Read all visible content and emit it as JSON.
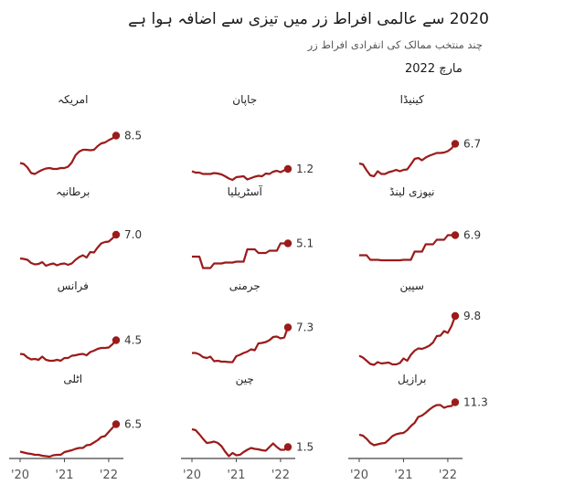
{
  "header": {
    "title": "2020 سے عالمی افراط زر میں تیزی سے اضافہ ہوا ہے",
    "subtitle": "چند منتخب ممالک کی انفرادی افراط زر",
    "period": "مارچ 2022"
  },
  "colors": {
    "line": "#9b1b1b",
    "axis": "#444444",
    "text": "#222222"
  },
  "chart_data": {
    "type": "line",
    "layout": "small-multiples-3x4",
    "x_ticks": [
      "'20",
      "'21",
      "'22"
    ],
    "x": [
      "2020-01",
      "2020-02",
      "2020-03",
      "2020-04",
      "2020-05",
      "2020-06",
      "2020-07",
      "2020-08",
      "2020-09",
      "2020-10",
      "2020-11",
      "2020-12",
      "2021-01",
      "2021-02",
      "2021-03",
      "2021-04",
      "2021-05",
      "2021-06",
      "2021-07",
      "2021-08",
      "2021-09",
      "2021-10",
      "2021-11",
      "2021-12",
      "2022-01",
      "2022-02",
      "2022-03"
    ],
    "ylim": [
      -1,
      12
    ],
    "panels": [
      {
        "name": "امریکہ",
        "last_value": "8.5",
        "values": [
          2.5,
          2.3,
          1.5,
          0.3,
          0.1,
          0.6,
          1.0,
          1.3,
          1.4,
          1.2,
          1.2,
          1.4,
          1.4,
          1.7,
          2.6,
          4.2,
          5.0,
          5.4,
          5.4,
          5.3,
          5.4,
          6.2,
          6.8,
          7.0,
          7.5,
          7.9,
          8.5
        ]
      },
      {
        "name": "جاپان",
        "last_value": "1.2",
        "values": [
          0.7,
          0.4,
          0.4,
          0.1,
          0.1,
          0.1,
          0.3,
          0.2,
          0.0,
          -0.4,
          -0.9,
          -1.2,
          -0.6,
          -0.5,
          -0.4,
          -1.1,
          -0.8,
          -0.5,
          -0.3,
          -0.4,
          0.2,
          0.1,
          0.6,
          0.8,
          0.5,
          0.9,
          1.2
        ]
      },
      {
        "name": "کینیڈا",
        "last_value": "6.7",
        "values": [
          2.4,
          2.2,
          0.9,
          -0.2,
          -0.4,
          0.7,
          0.1,
          0.1,
          0.5,
          0.7,
          1.0,
          0.7,
          1.0,
          1.1,
          2.2,
          3.4,
          3.6,
          3.1,
          3.7,
          4.1,
          4.4,
          4.7,
          4.7,
          4.8,
          5.1,
          5.7,
          6.7
        ]
      },
      {
        "name": "برطانیہ",
        "last_value": "7.0",
        "values": [
          1.8,
          1.7,
          1.5,
          0.8,
          0.5,
          0.6,
          1.0,
          0.2,
          0.5,
          0.7,
          0.3,
          0.6,
          0.7,
          0.4,
          0.7,
          1.5,
          2.1,
          2.5,
          2.0,
          3.2,
          3.1,
          4.2,
          5.1,
          5.4,
          5.5,
          6.2,
          7.0
        ]
      },
      {
        "name": "آسٹریلیا",
        "last_value": "5.1",
        "values": [
          2.2,
          2.2,
          2.2,
          -0.3,
          -0.3,
          -0.3,
          0.7,
          0.7,
          0.7,
          0.9,
          0.9,
          0.9,
          1.1,
          1.1,
          1.1,
          3.8,
          3.8,
          3.8,
          3.0,
          3.0,
          3.0,
          3.5,
          3.5,
          3.5,
          5.1,
          5.1,
          5.1
        ]
      },
      {
        "name": "نیوزی لینڈ",
        "last_value": "6.9",
        "values": [
          2.5,
          2.5,
          2.5,
          1.5,
          1.5,
          1.5,
          1.4,
          1.4,
          1.4,
          1.4,
          1.4,
          1.4,
          1.5,
          1.5,
          1.5,
          3.3,
          3.3,
          3.3,
          4.9,
          4.9,
          4.9,
          5.9,
          5.9,
          5.9,
          6.9,
          6.9,
          6.9
        ]
      },
      {
        "name": "فرانس",
        "last_value": "4.5",
        "values": [
          1.5,
          1.4,
          0.7,
          0.3,
          0.4,
          0.2,
          0.9,
          0.2,
          0.0,
          0.0,
          0.2,
          0.0,
          0.6,
          0.6,
          1.1,
          1.2,
          1.4,
          1.5,
          1.2,
          1.9,
          2.2,
          2.6,
          2.8,
          2.8,
          2.9,
          3.6,
          4.5
        ]
      },
      {
        "name": "جرمنی",
        "last_value": "7.3",
        "values": [
          1.7,
          1.7,
          1.4,
          0.8,
          0.6,
          0.9,
          -0.1,
          0.0,
          -0.2,
          -0.2,
          -0.3,
          -0.3,
          1.0,
          1.3,
          1.7,
          2.0,
          2.5,
          2.3,
          3.8,
          3.9,
          4.1,
          4.5,
          5.2,
          5.3,
          4.9,
          5.1,
          7.3
        ]
      },
      {
        "name": "سپین",
        "last_value": "9.8",
        "values": [
          1.1,
          0.7,
          0.0,
          -0.7,
          -0.9,
          -0.3,
          -0.6,
          -0.5,
          -0.4,
          -0.8,
          -0.8,
          -0.5,
          0.5,
          0.0,
          1.3,
          2.2,
          2.7,
          2.6,
          2.9,
          3.3,
          4.0,
          5.4,
          5.5,
          6.5,
          6.1,
          7.6,
          9.8
        ]
      },
      {
        "name": "اٹلی",
        "last_value": "6.5",
        "values": [
          0.5,
          0.3,
          0.1,
          0.0,
          -0.2,
          -0.2,
          -0.4,
          -0.5,
          -0.6,
          -0.3,
          -0.2,
          -0.2,
          0.4,
          0.6,
          0.8,
          1.1,
          1.3,
          1.3,
          1.9,
          2.0,
          2.5,
          3.0,
          3.7,
          3.9,
          4.8,
          5.7,
          6.5
        ]
      },
      {
        "name": "چین",
        "last_value": "1.5",
        "values": [
          5.4,
          5.2,
          4.3,
          3.3,
          2.4,
          2.5,
          2.7,
          2.4,
          1.7,
          0.5,
          -0.5,
          0.2,
          -0.3,
          -0.2,
          0.4,
          0.9,
          1.3,
          1.1,
          1.0,
          0.8,
          0.7,
          1.5,
          2.3,
          1.5,
          0.9,
          0.9,
          1.5
        ]
      },
      {
        "name": "برازیل",
        "last_value": "11.3",
        "values": [
          4.2,
          4.0,
          3.3,
          2.4,
          1.9,
          2.1,
          2.3,
          2.4,
          3.1,
          3.9,
          4.3,
          4.5,
          4.6,
          5.2,
          6.1,
          6.8,
          8.1,
          8.4,
          9.0,
          9.7,
          10.3,
          10.7,
          10.7,
          10.1,
          10.4,
          10.5,
          11.3
        ]
      }
    ]
  }
}
